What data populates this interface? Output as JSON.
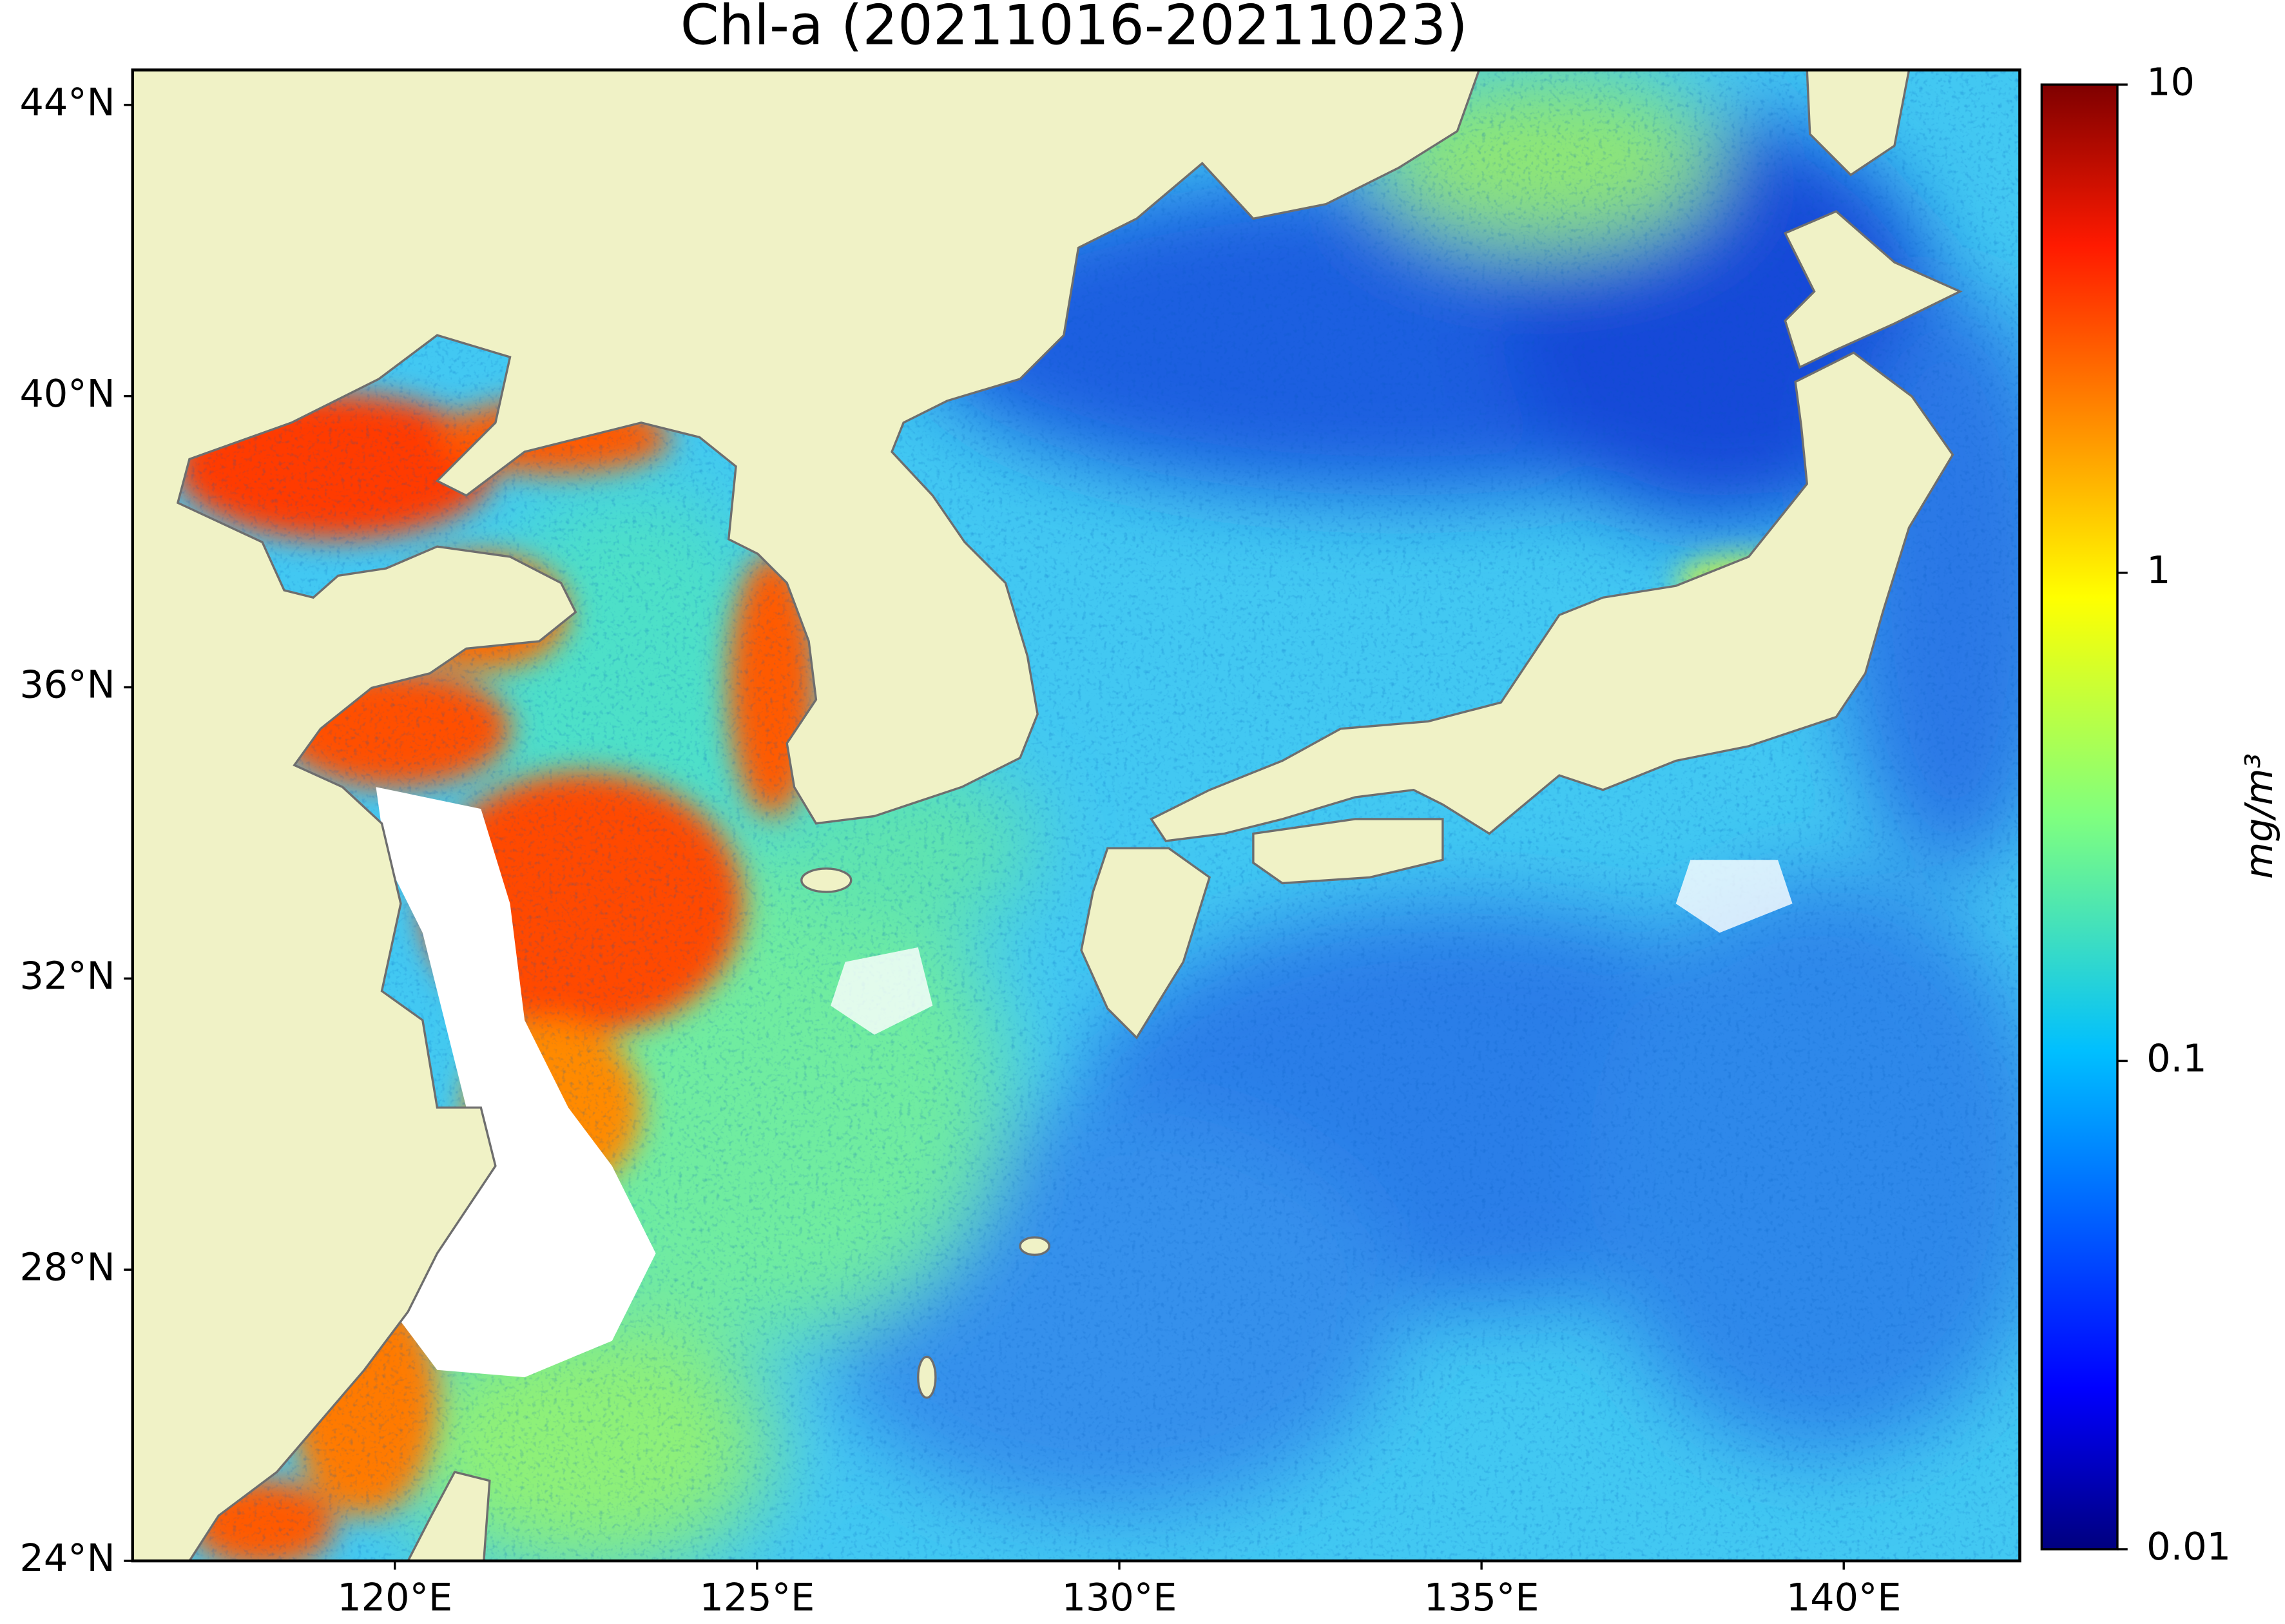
{
  "map": {
    "title": "Chl-a (20211016-20211023)",
    "xlim": [
      116.38,
      142.43
    ],
    "ylim": [
      24,
      44.48
    ],
    "lon_ticks": [
      {
        "value": 120,
        "label": "120°E"
      },
      {
        "value": 125,
        "label": "125°E"
      },
      {
        "value": 130,
        "label": "130°E"
      },
      {
        "value": 135,
        "label": "135°E"
      },
      {
        "value": 140,
        "label": "140°E"
      }
    ],
    "lat_ticks": [
      {
        "value": 24,
        "label": "24°N"
      },
      {
        "value": 28,
        "label": "28°N"
      },
      {
        "value": 32,
        "label": "32°N"
      },
      {
        "value": 36,
        "label": "36°N"
      },
      {
        "value": 40,
        "label": "40°N"
      },
      {
        "value": 44,
        "label": "44°N"
      }
    ],
    "colorbar": {
      "label": "mg/m³",
      "log": true,
      "lim": [
        0.01,
        10
      ],
      "ticks": [
        0.01,
        0.1,
        1,
        10
      ]
    }
  }
}
